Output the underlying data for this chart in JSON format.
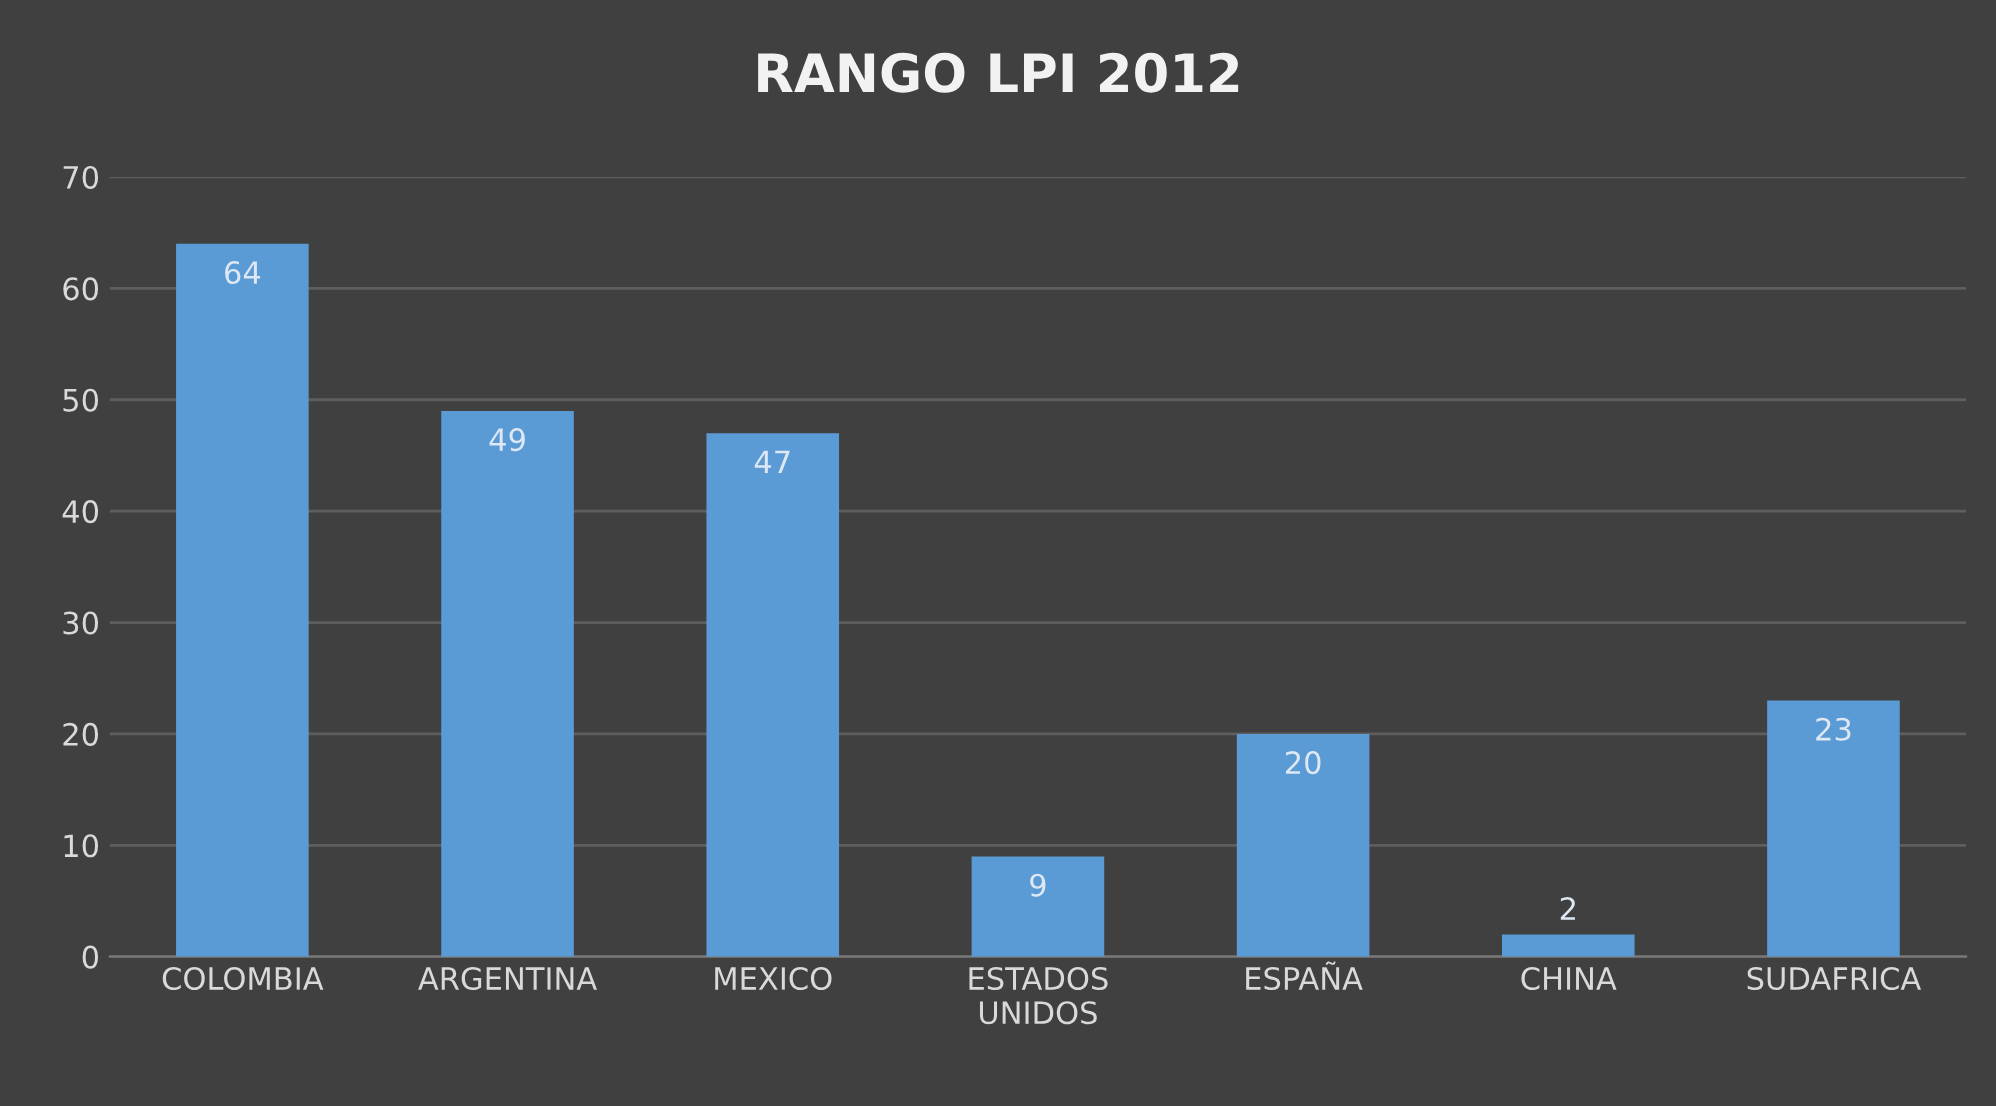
{
  "chart_data": {
    "type": "bar",
    "title": "RANGO LPI 2012",
    "categories": [
      "COLOMBIA",
      "ARGENTINA",
      "MEXICO",
      "ESTADOS UNIDOS",
      "ESPAÑA",
      "CHINA",
      "SUDAFRICA"
    ],
    "values": [
      64,
      49,
      47,
      9,
      20,
      2,
      23
    ],
    "color": "#5b9bd5",
    "ylim": [
      0,
      70
    ],
    "yticks": [
      0,
      10,
      20,
      30,
      40,
      50,
      60,
      70
    ],
    "grid": "y",
    "data_labels": true,
    "legend": false
  }
}
